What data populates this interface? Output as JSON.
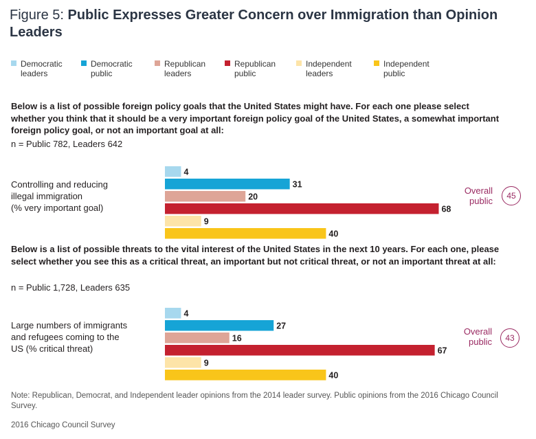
{
  "title": {
    "figure": "Figure 5:",
    "main": "Public Expresses Greater Concern over Immigration than Opinion Leaders"
  },
  "legend": [
    {
      "line1": "Democratic",
      "line2": "leaders",
      "color": "#a7d8ee"
    },
    {
      "line1": "Democratic",
      "line2": "public",
      "color": "#16a4d6"
    },
    {
      "line1": "Republican",
      "line2": "leaders",
      "color": "#dea597"
    },
    {
      "line1": "Republican",
      "line2": "public",
      "color": "#c4212f"
    },
    {
      "line1": "Independent",
      "line2": "leaders",
      "color": "#fde4a8"
    },
    {
      "line1": "Independent",
      "line2": "public",
      "color": "#f9c51a"
    }
  ],
  "sections": [
    {
      "question": "Below is a list of possible foreign policy goals that the United States might have. For each one please select whether you think that it should be a very important foreign policy goal of the United States, a somewhat important foreign policy goal, or not an important goal at all:",
      "n": "n = Public 782, Leaders 642",
      "row_label_lines": [
        "Controlling and reducing",
        "illegal immigration",
        "(% very important goal)"
      ],
      "overall_label_line1": "Overall",
      "overall_label_line2": "public",
      "overall_value": "45"
    },
    {
      "question": "Below is a list of possible threats to the vital interest of the United States in the next 10 years. For each one, please select whether you see this as a critical threat, an important but not critical threat, or not an important threat at all:",
      "n": "n = Public 1,728, Leaders 635",
      "row_label_lines": [
        "Large numbers of immigrants",
        "and refugees coming to the",
        "US (% critical threat)"
      ],
      "overall_label_line1": "Overall",
      "overall_label_line2": "public",
      "overall_value": "43"
    }
  ],
  "chart_data": [
    {
      "type": "bar",
      "orientation": "horizontal",
      "categories": [
        "Democratic leaders",
        "Democratic public",
        "Republican leaders",
        "Republican public",
        "Independent leaders",
        "Independent public"
      ],
      "values": [
        4,
        31,
        20,
        68,
        9,
        40
      ],
      "colors": [
        "#a7d8ee",
        "#16a4d6",
        "#dea597",
        "#c4212f",
        "#fde4a8",
        "#f9c51a"
      ],
      "ylabel": "Controlling and reducing illegal immigration (% very important goal)",
      "xlim": [
        0,
        100
      ],
      "grid": false,
      "annotation": "Overall public 45"
    },
    {
      "type": "bar",
      "orientation": "horizontal",
      "categories": [
        "Democratic leaders",
        "Democratic public",
        "Republican leaders",
        "Republican public",
        "Independent leaders",
        "Independent public"
      ],
      "values": [
        4,
        27,
        16,
        67,
        9,
        40
      ],
      "colors": [
        "#a7d8ee",
        "#16a4d6",
        "#dea597",
        "#c4212f",
        "#fde4a8",
        "#f9c51a"
      ],
      "ylabel": "Large numbers of immigrants and refugees coming to the US (% critical threat)",
      "xlim": [
        0,
        100
      ],
      "grid": false,
      "annotation": "Overall public 43"
    }
  ],
  "note": "Note: Republican, Democrat, and Independent leader opinions from the 2014 leader survey. Public opinions from the 2016 Chicago Council Survey.",
  "source": "2016 Chicago Council Survey"
}
